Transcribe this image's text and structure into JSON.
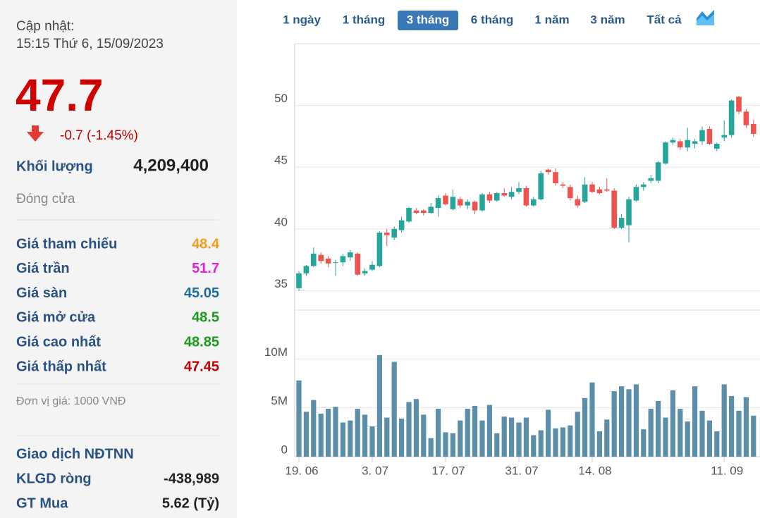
{
  "panel": {
    "update_label": "Cập nhật:",
    "update_time": "15:15 Thứ 6, 15/09/2023",
    "price": "47.7",
    "change": "-0.7 (-1.45%)",
    "volume_label": "Khối lượng",
    "volume": "4,209,400",
    "close_label": "Đóng cửa",
    "rows": [
      {
        "label": "Giá tham chiếu",
        "value": "48.4",
        "color": "#f0a020"
      },
      {
        "label": "Giá trần",
        "value": "51.7",
        "color": "#e020e0"
      },
      {
        "label": "Giá sàn",
        "value": "45.05",
        "color": "#1f6d9c"
      },
      {
        "label": "Giá mở cửa",
        "value": "48.5",
        "color": "#1a9a1a"
      },
      {
        "label": "Giá cao nhất",
        "value": "48.85",
        "color": "#1a9a1a"
      },
      {
        "label": "Giá thấp nhất",
        "value": "47.45",
        "color": "#c00000"
      }
    ],
    "unit_note": "Đơn vị giá: 1000 VNĐ",
    "foreign_title": "Giao dịch NĐTNN",
    "foreign_rows": [
      {
        "label": "KLGD ròng",
        "value": "-438,989"
      },
      {
        "label": "GT Mua",
        "value": "5.62 (Tỷ)"
      }
    ]
  },
  "range_buttons": [
    "1 ngày",
    "1 tháng",
    "3 tháng",
    "6 tháng",
    "1 năm",
    "3 năm",
    "Tất cả"
  ],
  "selected_range": 2,
  "chart_data": [
    {
      "type": "candlestick",
      "up_color": "#26a69a",
      "down_color": "#ef5350",
      "ylim": [
        34,
        55
      ],
      "yticks": [
        35,
        40,
        45,
        50
      ],
      "grid": true,
      "open": [
        35.2,
        36.4,
        37.0,
        37.9,
        37.6,
        37.3,
        37.3,
        37.7,
        38.0,
        36.4,
        36.7,
        37.0,
        39.7,
        39.3,
        39.9,
        40.6,
        41.5,
        41.5,
        41.3,
        41.7,
        42.7,
        41.6,
        42.4,
        41.9,
        42.2,
        41.5,
        42.8,
        42.3,
        42.9,
        42.6,
        43.0,
        43.3,
        41.9,
        42.4,
        44.8,
        44.6,
        43.6,
        43.4,
        42.4,
        42.2,
        43.6,
        43.2,
        43.2,
        43.1,
        40.1,
        40.3,
        42.3,
        43.4,
        43.9,
        43.9,
        45.3,
        47.0,
        47.1,
        46.6,
        46.9,
        47.1,
        48.1,
        46.5,
        47.4,
        47.6,
        50.7,
        49.5,
        48.5
      ],
      "high": [
        36.6,
        37.1,
        38.5,
        38.1,
        37.8,
        37.5,
        38.0,
        38.3,
        38.1,
        36.8,
        37.4,
        39.8,
        40.0,
        40.2,
        41.0,
        41.8,
        41.7,
        41.6,
        42.1,
        42.7,
        42.9,
        43.2,
        42.6,
        42.4,
        42.3,
        42.9,
        43.0,
        43.0,
        43.3,
        43.4,
        43.8,
        43.5,
        42.6,
        44.7,
        44.9,
        44.9,
        43.8,
        43.6,
        42.7,
        44.2,
        43.8,
        43.4,
        44.1,
        43.3,
        41.2,
        42.6,
        43.6,
        43.8,
        44.4,
        45.5,
        47.1,
        47.4,
        47.3,
        48.2,
        47.3,
        48.3,
        48.3,
        47.0,
        48.8,
        50.5,
        50.8,
        49.7,
        48.85
      ],
      "low": [
        35.0,
        36.2,
        36.9,
        37.2,
        36.9,
        36.2,
        37.0,
        37.4,
        36.2,
        36.2,
        36.6,
        36.9,
        38.6,
        39.1,
        39.7,
        40.5,
        41.2,
        41.1,
        41.2,
        41.0,
        41.9,
        41.5,
        41.7,
        41.6,
        41.2,
        41.4,
        42.1,
        42.2,
        42.6,
        42.4,
        42.8,
        41.8,
        41.8,
        42.3,
        44.4,
        43.5,
        43.3,
        42.3,
        41.7,
        42.1,
        42.9,
        42.8,
        43.0,
        40.0,
        40.0,
        38.9,
        42.2,
        43.1,
        43.7,
        43.7,
        45.2,
        46.8,
        46.4,
        46.3,
        46.5,
        46.8,
        46.8,
        46.3,
        47.1,
        47.4,
        49.3,
        48.2,
        47.45
      ],
      "close": [
        36.4,
        37.0,
        38.0,
        37.4,
        37.2,
        37.3,
        37.8,
        38.1,
        36.3,
        36.6,
        37.1,
        39.7,
        39.5,
        40.0,
        40.7,
        41.7,
        41.3,
        41.3,
        41.8,
        42.5,
        42.0,
        42.6,
        41.9,
        42.2,
        41.5,
        42.8,
        42.3,
        42.9,
        42.7,
        43.0,
        43.3,
        41.9,
        42.4,
        44.5,
        44.6,
        43.7,
        43.5,
        42.5,
        41.9,
        43.6,
        43.0,
        42.9,
        43.1,
        40.1,
        40.9,
        42.4,
        43.4,
        43.6,
        44.1,
        45.4,
        47.0,
        47.2,
        46.6,
        47.2,
        47.1,
        48.0,
        46.9,
        46.9,
        47.6,
        50.4,
        49.5,
        48.4,
        47.7
      ]
    },
    {
      "type": "bar",
      "color": "#5b8ea8",
      "ylim": [
        0,
        15
      ],
      "yticks": [
        0,
        {
          "value": 5,
          "label": "5M"
        },
        {
          "value": 10,
          "label": "10M"
        }
      ],
      "grid": true,
      "categories": [
        "19. 06",
        null,
        null,
        null,
        null,
        null,
        null,
        null,
        null,
        null,
        "3. 07",
        null,
        null,
        null,
        null,
        null,
        null,
        null,
        null,
        null,
        "17. 07",
        null,
        null,
        null,
        null,
        null,
        null,
        null,
        null,
        null,
        "31. 07",
        null,
        null,
        null,
        null,
        null,
        null,
        null,
        null,
        null,
        "14. 08",
        null,
        null,
        null,
        null,
        null,
        null,
        null,
        null,
        null,
        null,
        null,
        null,
        null,
        null,
        null,
        null,
        null,
        "11. 09",
        null,
        null,
        null,
        null
      ],
      "values": [
        7.8,
        4.6,
        5.8,
        4.4,
        4.9,
        5.1,
        3.5,
        3.7,
        4.9,
        4.3,
        3.1,
        10.4,
        4.0,
        9.7,
        3.9,
        5.6,
        5.9,
        4.3,
        1.9,
        4.9,
        2.5,
        2.4,
        3.7,
        4.9,
        5.2,
        3.7,
        5.3,
        2.4,
        4.1,
        4.0,
        3.5,
        4.0,
        2.2,
        2.7,
        4.8,
        2.9,
        3.0,
        3.2,
        4.6,
        6.0,
        7.6,
        2.6,
        3.8,
        6.7,
        7.2,
        6.9,
        7.4,
        2.8,
        4.9,
        5.7,
        4.0,
        6.8,
        4.9,
        3.6,
        7.2,
        4.7,
        3.7,
        2.6,
        7.4,
        6.2,
        4.7,
        6.1,
        4.2
      ]
    }
  ]
}
